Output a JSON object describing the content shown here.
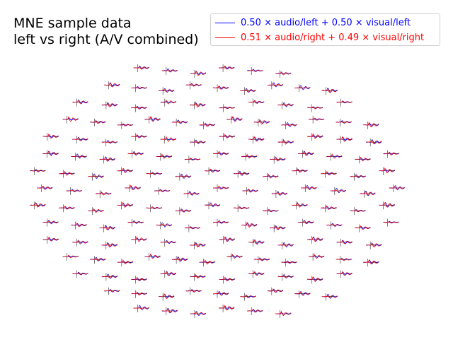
{
  "figure": {
    "title_lines": [
      "MNE sample data",
      "left vs right (A/V combined)"
    ]
  },
  "legend": {
    "entries": [
      {
        "label": "0.50 × audio/left + 0.50 × visual/left",
        "color": "#0000ff"
      },
      {
        "label": "0.51 × audio/right + 0.49 × visual/right",
        "color": "#ff0000"
      }
    ]
  },
  "chart_data": {
    "type": "line",
    "layout": "sensor-topography",
    "title": "MNE sample data\nleft vs right (A/V combined)",
    "xlabel": "",
    "ylabel": "",
    "grid": false,
    "legend_position": "top-right",
    "series": [
      {
        "name": "0.50 × audio/left + 0.50 × visual/left",
        "color": "#0000ff"
      },
      {
        "name": "0.51 × audio/right + 0.49 × visual/right",
        "color": "#ff0000"
      }
    ],
    "sensor_count": 204
  }
}
